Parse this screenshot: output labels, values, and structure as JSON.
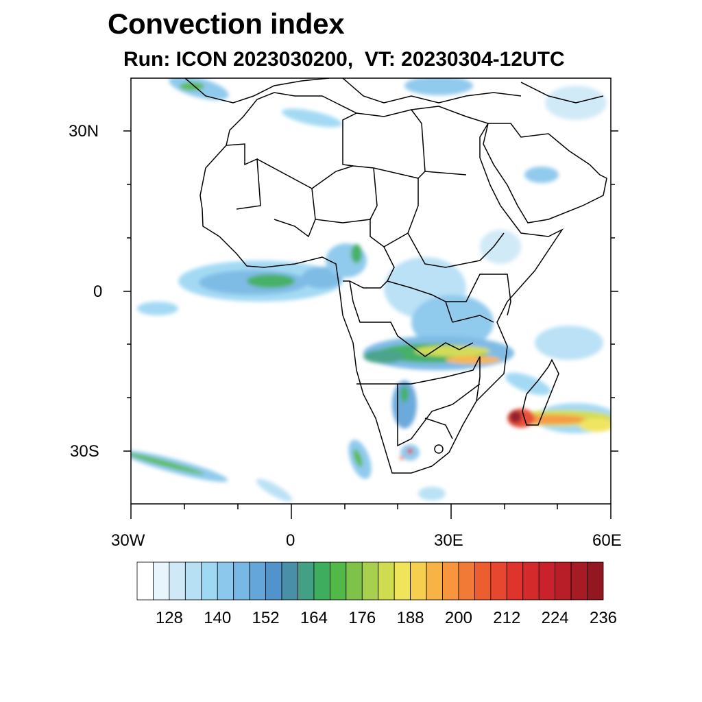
{
  "title": "Convection index",
  "subtitle": "Run: ICON 2023030200,  VT: 20230304-12UTC",
  "axes": {
    "lat_labels": [
      "30N",
      "0",
      "30S"
    ],
    "lon_labels": [
      "30W",
      "0",
      "30E",
      "60E"
    ]
  },
  "colorbar": {
    "colors": [
      "#ffffff",
      "#e9f5fc",
      "#cfe9f7",
      "#b7e0f5",
      "#9fd8f3",
      "#8bc8ec",
      "#78b8e4",
      "#65a6da",
      "#5393cc",
      "#4a8fa8",
      "#43a085",
      "#3ead5e",
      "#52b848",
      "#7ec24a",
      "#a8cf4d",
      "#d0dc50",
      "#f0e45a",
      "#f7cf4e",
      "#f8b346",
      "#f7963e",
      "#f27a37",
      "#ec5e30",
      "#e6472e",
      "#df342b",
      "#d52a2c",
      "#c9222c",
      "#b81e27",
      "#a71b24",
      "#921720"
    ],
    "labels": [
      "128",
      "140",
      "152",
      "164",
      "176",
      "188",
      "200",
      "212",
      "224",
      "236"
    ]
  }
}
